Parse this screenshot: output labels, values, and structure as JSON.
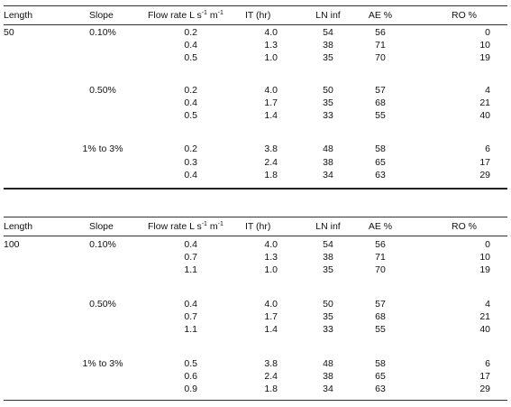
{
  "headers": {
    "length": "Length",
    "slope": "Slope",
    "flow_base": "Flow rate L s",
    "flow_sup1": "-1",
    "flow_mid": " m",
    "flow_sup2": "-1",
    "it": "IT (hr)",
    "ln": "LN inf",
    "ae": "AE %",
    "ro": "RO %"
  },
  "tables": [
    {
      "length": "50",
      "groups": [
        {
          "slope": "0.10%",
          "rows": [
            {
              "flow": "0.2",
              "it": "4.0",
              "ln": "54",
              "ae": "56",
              "ro": "0"
            },
            {
              "flow": "0.4",
              "it": "1.3",
              "ln": "38",
              "ae": "71",
              "ro": "10"
            },
            {
              "flow": "0.5",
              "it": "1.0",
              "ln": "35",
              "ae": "70",
              "ro": "19"
            }
          ]
        },
        {
          "slope": "0.50%",
          "rows": [
            {
              "flow": "0.2",
              "it": "4.0",
              "ln": "50",
              "ae": "57",
              "ro": "4"
            },
            {
              "flow": "0.4",
              "it": "1.7",
              "ln": "35",
              "ae": "68",
              "ro": "21"
            },
            {
              "flow": "0.5",
              "it": "1.4",
              "ln": "33",
              "ae": "55",
              "ro": "40"
            }
          ]
        },
        {
          "slope": "1% to 3%",
          "rows": [
            {
              "flow": "0.2",
              "it": "3.8",
              "ln": "48",
              "ae": "58",
              "ro": "6"
            },
            {
              "flow": "0.3",
              "it": "2.4",
              "ln": "38",
              "ae": "65",
              "ro": "17"
            },
            {
              "flow": "0.4",
              "it": "1.8",
              "ln": "34",
              "ae": "63",
              "ro": "29"
            }
          ]
        }
      ]
    },
    {
      "length": "100",
      "groups": [
        {
          "slope": "0.10%",
          "rows": [
            {
              "flow": "0.4",
              "it": "4.0",
              "ln": "54",
              "ae": "56",
              "ro": "0"
            },
            {
              "flow": "0.7",
              "it": "1.3",
              "ln": "38",
              "ae": "71",
              "ro": "10"
            },
            {
              "flow": "1.1",
              "it": "1.0",
              "ln": "35",
              "ae": "70",
              "ro": "19"
            }
          ]
        },
        {
          "slope": "0.50%",
          "rows": [
            {
              "flow": "0.4",
              "it": "4.0",
              "ln": "50",
              "ae": "57",
              "ro": "4"
            },
            {
              "flow": "0.7",
              "it": "1.7",
              "ln": "35",
              "ae": "68",
              "ro": "21"
            },
            {
              "flow": "1.1",
              "it": "1.4",
              "ln": "33",
              "ae": "55",
              "ro": "40"
            }
          ]
        },
        {
          "slope": "1% to 3%",
          "rows": [
            {
              "flow": "0.5",
              "it": "3.8",
              "ln": "48",
              "ae": "58",
              "ro": "6"
            },
            {
              "flow": "0.6",
              "it": "2.4",
              "ln": "38",
              "ae": "65",
              "ro": "17"
            },
            {
              "flow": "0.9",
              "it": "1.8",
              "ln": "34",
              "ae": "63",
              "ro": "29"
            }
          ]
        }
      ]
    }
  ]
}
